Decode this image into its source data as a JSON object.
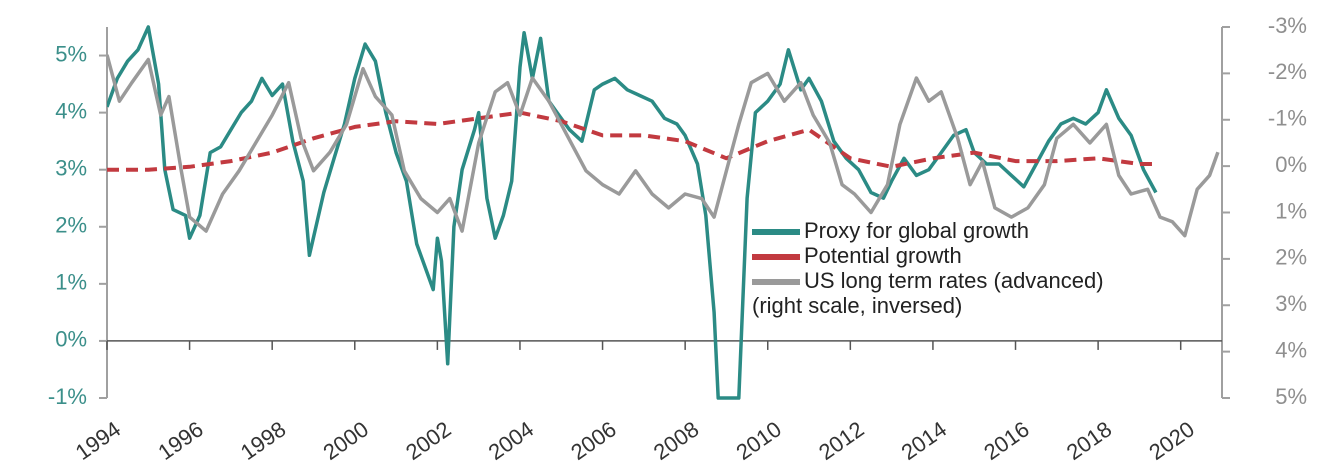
{
  "chart_data": {
    "type": "line",
    "xlim": [
      1994,
      2021
    ],
    "xticks": [
      1994,
      1996,
      1998,
      2000,
      2002,
      2004,
      2006,
      2008,
      2010,
      2012,
      2014,
      2016,
      2018,
      2020
    ],
    "ylim": [
      -1,
      5.5
    ],
    "yticks": [
      {
        "value": -1,
        "label": "-1%"
      },
      {
        "value": 0,
        "label": "0%"
      },
      {
        "value": 1,
        "label": "1%"
      },
      {
        "value": 2,
        "label": "2%"
      },
      {
        "value": 3,
        "label": "3%"
      },
      {
        "value": 4,
        "label": "4%"
      },
      {
        "value": 5,
        "label": "5%"
      }
    ],
    "y2lim": [
      -3,
      5
    ],
    "y2_inverted": true,
    "y2ticks": [
      {
        "value": -3,
        "label": "-3%"
      },
      {
        "value": -2,
        "label": "-2%"
      },
      {
        "value": -1,
        "label": "-1%"
      },
      {
        "value": 0,
        "label": "0%"
      },
      {
        "value": 1,
        "label": "1%"
      },
      {
        "value": 2,
        "label": "2%"
      },
      {
        "value": 3,
        "label": "3%"
      },
      {
        "value": 4,
        "label": "4%"
      },
      {
        "value": 5,
        "label": "5%"
      }
    ],
    "legend_position": "lower right",
    "legend_note": "(right scale, inversed)",
    "series": [
      {
        "name": "Proxy for global growth",
        "color": "#2b8b85",
        "line_style": "solid",
        "x": [
          1994.0,
          1994.25,
          1994.5,
          1994.75,
          1995.0,
          1995.25,
          1995.4,
          1995.6,
          1995.9,
          1996.0,
          1996.25,
          1996.5,
          1996.75,
          1997.0,
          1997.25,
          1997.5,
          1997.75,
          1998.0,
          1998.25,
          1998.5,
          1998.75,
          1998.9,
          1999.25,
          1999.5,
          1999.75,
          2000.0,
          2000.25,
          2000.5,
          2000.75,
          2001.0,
          2001.25,
          2001.5,
          2001.75,
          2001.9,
          2002.0,
          2002.1,
          2002.25,
          2002.4,
          2002.6,
          2002.9,
          2003.0,
          2003.2,
          2003.4,
          2003.6,
          2003.8,
          2004.0,
          2004.1,
          2004.3,
          2004.5,
          2004.7,
          2004.9,
          2005.2,
          2005.5,
          2005.8,
          2006.0,
          2006.3,
          2006.6,
          2006.9,
          2007.2,
          2007.5,
          2007.8,
          2008.0,
          2008.3,
          2008.5,
          2008.7,
          2008.8,
          2009.0,
          2009.3,
          2009.5,
          2009.7,
          2010.0,
          2010.3,
          2010.5,
          2010.8,
          2011.0,
          2011.3,
          2011.6,
          2011.9,
          2012.2,
          2012.5,
          2012.8,
          2013.0,
          2013.3,
          2013.6,
          2013.9,
          2014.2,
          2014.5,
          2014.8,
          2015.0,
          2015.3,
          2015.6,
          2015.9,
          2016.2,
          2016.5,
          2016.8,
          2017.1,
          2017.4,
          2017.7,
          2018.0,
          2018.2,
          2018.5,
          2018.8,
          2019.1,
          2019.4
        ],
        "values": [
          4.1,
          4.6,
          4.9,
          5.1,
          5.5,
          4.5,
          3.0,
          2.3,
          2.2,
          1.8,
          2.2,
          3.3,
          3.4,
          3.7,
          4.0,
          4.2,
          4.6,
          4.3,
          4.5,
          3.5,
          2.8,
          1.5,
          2.6,
          3.2,
          3.8,
          4.6,
          5.2,
          4.9,
          4.0,
          3.3,
          2.8,
          1.7,
          1.2,
          0.9,
          1.8,
          1.4,
          -0.4,
          2.0,
          3.0,
          3.7,
          4.0,
          2.5,
          1.8,
          2.2,
          2.8,
          4.8,
          5.4,
          4.6,
          5.3,
          4.2,
          4.0,
          3.7,
          3.5,
          4.4,
          4.5,
          4.6,
          4.4,
          4.3,
          4.2,
          3.9,
          3.8,
          3.6,
          3.1,
          2.2,
          0.5,
          -1.0,
          -1.0,
          -1.0,
          2.5,
          4.0,
          4.2,
          4.5,
          5.1,
          4.4,
          4.6,
          4.2,
          3.5,
          3.2,
          3.0,
          2.6,
          2.5,
          2.8,
          3.2,
          2.9,
          3.0,
          3.3,
          3.6,
          3.7,
          3.3,
          3.1,
          3.1,
          2.9,
          2.7,
          3.1,
          3.5,
          3.8,
          3.9,
          3.8,
          4.0,
          4.4,
          3.9,
          3.6,
          3.0,
          2.6
        ]
      },
      {
        "name": "Potential growth",
        "color": "#c23a40",
        "line_style": "dashed",
        "x": [
          1994,
          1995,
          1996,
          1997,
          1998,
          1999,
          2000,
          2001,
          2002,
          2003,
          2004,
          2005,
          2006,
          2007,
          2008,
          2009,
          2010,
          2011,
          2012,
          2013,
          2014,
          2015,
          2016,
          2017,
          2018,
          2019,
          2019.4
        ],
        "values": [
          3.0,
          3.0,
          3.05,
          3.15,
          3.3,
          3.55,
          3.75,
          3.85,
          3.8,
          3.9,
          4.0,
          3.85,
          3.6,
          3.6,
          3.5,
          3.2,
          3.5,
          3.7,
          3.2,
          3.05,
          3.2,
          3.3,
          3.15,
          3.15,
          3.2,
          3.1,
          3.1
        ]
      },
      {
        "name": "US long term rates (advanced)",
        "color": "#9a9a9a",
        "line_style": "solid",
        "axis": "y2",
        "x": [
          1994.0,
          1994.3,
          1994.6,
          1995.0,
          1995.3,
          1995.5,
          1995.8,
          1996.0,
          1996.4,
          1996.8,
          1997.2,
          1997.6,
          1998.0,
          1998.4,
          1998.7,
          1999.0,
          1999.4,
          1999.8,
          2000.2,
          2000.5,
          2000.9,
          2001.2,
          2001.6,
          2002.0,
          2002.3,
          2002.6,
          2003.0,
          2003.4,
          2003.7,
          2004.0,
          2004.3,
          2004.7,
          2005.0,
          2005.3,
          2005.6,
          2006.0,
          2006.4,
          2006.8,
          2007.2,
          2007.6,
          2008.0,
          2008.4,
          2008.7,
          2009.0,
          2009.3,
          2009.6,
          2010.0,
          2010.4,
          2010.8,
          2011.1,
          2011.5,
          2011.8,
          2012.1,
          2012.5,
          2012.9,
          2013.2,
          2013.6,
          2013.9,
          2014.2,
          2014.6,
          2014.9,
          2015.2,
          2015.5,
          2015.9,
          2016.3,
          2016.7,
          2017.0,
          2017.4,
          2017.8,
          2018.2,
          2018.5,
          2018.8,
          2019.2,
          2019.5,
          2019.8,
          2020.1,
          2020.4,
          2020.7,
          2020.9
        ],
        "values": [
          -2.4,
          -1.4,
          -1.8,
          -2.3,
          -1.1,
          -1.5,
          0.1,
          1.1,
          1.4,
          0.6,
          0.1,
          -0.5,
          -1.1,
          -1.8,
          -0.6,
          0.1,
          -0.3,
          -0.9,
          -2.1,
          -1.5,
          -1.1,
          0.1,
          0.7,
          1.0,
          0.7,
          1.4,
          -0.5,
          -1.6,
          -1.8,
          -1.1,
          -1.9,
          -1.4,
          -0.9,
          -0.4,
          0.1,
          0.4,
          0.6,
          0.1,
          0.6,
          0.9,
          0.6,
          0.7,
          1.1,
          0.1,
          -0.9,
          -1.8,
          -2.0,
          -1.4,
          -1.8,
          -1.1,
          -0.5,
          0.4,
          0.6,
          1.0,
          0.4,
          -0.9,
          -1.9,
          -1.4,
          -1.6,
          -0.6,
          0.4,
          -0.1,
          0.9,
          1.1,
          0.9,
          0.4,
          -0.6,
          -0.9,
          -0.5,
          -0.9,
          0.2,
          0.6,
          0.5,
          1.1,
          1.2,
          1.5,
          0.5,
          0.2,
          -0.3
        ]
      }
    ]
  }
}
